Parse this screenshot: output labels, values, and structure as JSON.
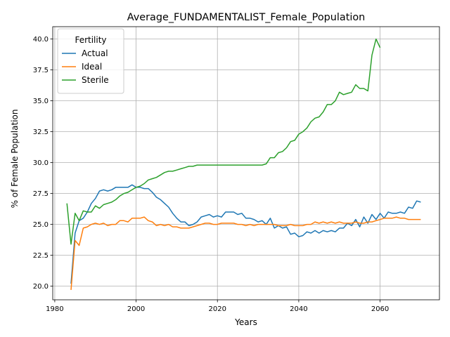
{
  "chart_data": {
    "type": "line",
    "title": "Average_FUNDAMENTALIST_Female_Population",
    "xlabel": "Years",
    "ylabel": "% of Female Population",
    "xlim": [
      1979.5,
      2074.6
    ],
    "ylim": [
      18.9,
      41.0
    ],
    "xticks": [
      1980,
      2000,
      2020,
      2040,
      2060
    ],
    "yticks": [
      20.0,
      22.5,
      25.0,
      27.5,
      30.0,
      32.5,
      35.0,
      37.5,
      40.0
    ],
    "xtick_labels": [
      "1980",
      "2000",
      "2020",
      "2040",
      "2060"
    ],
    "ytick_labels": [
      "20.0",
      "22.5",
      "25.0",
      "27.5",
      "30.0",
      "32.5",
      "35.0",
      "37.5",
      "40.0"
    ],
    "grid": true,
    "legend": {
      "title": "Fertility",
      "position": "top-left"
    },
    "series": [
      {
        "name": "Actual",
        "color": "#1f77b4",
        "x": [
          1984,
          1985,
          1986,
          1987,
          1988,
          1989,
          1990,
          1991,
          1992,
          1993,
          1994,
          1995,
          1996,
          1997,
          1998,
          1999,
          2000,
          2001,
          2002,
          2003,
          2004,
          2005,
          2006,
          2007,
          2008,
          2009,
          2010,
          2011,
          2012,
          2013,
          2014,
          2015,
          2016,
          2017,
          2018,
          2019,
          2020,
          2021,
          2022,
          2023,
          2024,
          2025,
          2026,
          2027,
          2028,
          2029,
          2030,
          2031,
          2032,
          2033,
          2034,
          2035,
          2036,
          2037,
          2038,
          2039,
          2040,
          2041,
          2042,
          2043,
          2044,
          2045,
          2046,
          2047,
          2048,
          2049,
          2050,
          2051,
          2052,
          2053,
          2054,
          2055,
          2056,
          2057,
          2058,
          2059,
          2060,
          2061,
          2062,
          2063,
          2064,
          2065,
          2066,
          2067,
          2068,
          2069,
          2070
        ],
        "values": [
          20.2,
          24.3,
          25.3,
          25.5,
          26.0,
          26.7,
          27.1,
          27.7,
          27.8,
          27.7,
          27.8,
          28.0,
          28.0,
          28.0,
          28.0,
          28.2,
          28.0,
          28.0,
          27.9,
          27.9,
          27.6,
          27.2,
          27.0,
          26.7,
          26.4,
          25.9,
          25.5,
          25.2,
          25.2,
          24.9,
          25.0,
          25.2,
          25.6,
          25.7,
          25.8,
          25.6,
          25.7,
          25.6,
          26.0,
          26.0,
          26.0,
          25.8,
          25.9,
          25.5,
          25.5,
          25.4,
          25.2,
          25.3,
          25.0,
          25.5,
          24.7,
          24.9,
          24.7,
          24.8,
          24.2,
          24.3,
          24.0,
          24.1,
          24.4,
          24.3,
          24.5,
          24.3,
          24.5,
          24.4,
          24.5,
          24.4,
          24.7,
          24.7,
          25.1,
          24.9,
          25.4,
          24.8,
          25.6,
          25.1,
          25.8,
          25.4,
          25.9,
          25.5,
          26.0,
          25.9,
          25.9,
          26.0,
          25.9,
          26.4,
          26.3,
          26.9,
          26.8
        ]
      },
      {
        "name": "Ideal",
        "color": "#ff7f0e",
        "x": [
          1984,
          1985,
          1986,
          1987,
          1988,
          1989,
          1990,
          1991,
          1992,
          1993,
          1994,
          1995,
          1996,
          1997,
          1998,
          1999,
          2000,
          2001,
          2002,
          2003,
          2004,
          2005,
          2006,
          2007,
          2008,
          2009,
          2010,
          2011,
          2012,
          2013,
          2014,
          2015,
          2016,
          2017,
          2018,
          2019,
          2020,
          2021,
          2022,
          2023,
          2024,
          2025,
          2026,
          2027,
          2028,
          2029,
          2030,
          2031,
          2032,
          2033,
          2034,
          2035,
          2036,
          2037,
          2038,
          2039,
          2040,
          2041,
          2042,
          2043,
          2044,
          2045,
          2046,
          2047,
          2048,
          2049,
          2050,
          2051,
          2052,
          2053,
          2054,
          2055,
          2056,
          2057,
          2058,
          2059,
          2060,
          2061,
          2062,
          2063,
          2064,
          2065,
          2066,
          2067,
          2068,
          2069,
          2070
        ],
        "values": [
          19.7,
          23.7,
          23.3,
          24.7,
          24.8,
          25.0,
          25.1,
          25.0,
          25.1,
          24.9,
          25.0,
          25.0,
          25.3,
          25.3,
          25.2,
          25.5,
          25.5,
          25.5,
          25.6,
          25.3,
          25.2,
          24.9,
          25.0,
          24.9,
          25.0,
          24.8,
          24.8,
          24.7,
          24.7,
          24.7,
          24.8,
          24.9,
          25.0,
          25.1,
          25.1,
          25.0,
          25.0,
          25.1,
          25.1,
          25.1,
          25.1,
          25.0,
          25.0,
          24.9,
          25.0,
          24.9,
          25.0,
          25.0,
          25.0,
          25.0,
          25.0,
          24.9,
          24.9,
          24.9,
          25.0,
          24.9,
          24.9,
          24.9,
          25.0,
          25.0,
          25.2,
          25.1,
          25.2,
          25.1,
          25.2,
          25.1,
          25.2,
          25.1,
          25.1,
          25.1,
          25.2,
          25.1,
          25.1,
          25.2,
          25.2,
          25.3,
          25.4,
          25.5,
          25.5,
          25.5,
          25.6,
          25.5,
          25.5,
          25.4,
          25.4,
          25.4,
          25.4
        ]
      },
      {
        "name": "Sterile",
        "color": "#2ca02c",
        "x": [
          1983,
          1984,
          1985,
          1986,
          1987,
          1988,
          1989,
          1990,
          1991,
          1992,
          1993,
          1994,
          1995,
          1996,
          1997,
          1998,
          1999,
          2000,
          2001,
          2002,
          2003,
          2004,
          2005,
          2006,
          2007,
          2008,
          2009,
          2010,
          2011,
          2012,
          2013,
          2014,
          2015,
          2016,
          2017,
          2018,
          2019,
          2020,
          2021,
          2022,
          2023,
          2024,
          2025,
          2026,
          2027,
          2028,
          2029,
          2030,
          2031,
          2032,
          2033,
          2034,
          2035,
          2036,
          2037,
          2038,
          2039,
          2040,
          2041,
          2042,
          2043,
          2044,
          2045,
          2046,
          2047,
          2048,
          2049,
          2050,
          2051,
          2052,
          2053,
          2054,
          2055,
          2056,
          2057,
          2058,
          2059,
          2060
        ],
        "values": [
          26.7,
          23.4,
          25.9,
          25.3,
          26.1,
          26.0,
          26.0,
          26.5,
          26.3,
          26.6,
          26.7,
          26.8,
          27.0,
          27.3,
          27.5,
          27.6,
          27.8,
          28.0,
          28.1,
          28.3,
          28.6,
          28.7,
          28.8,
          29.0,
          29.2,
          29.3,
          29.3,
          29.4,
          29.5,
          29.6,
          29.7,
          29.7,
          29.8,
          29.8,
          29.8,
          29.8,
          29.8,
          29.8,
          29.8,
          29.8,
          29.8,
          29.8,
          29.8,
          29.8,
          29.8,
          29.8,
          29.8,
          29.8,
          29.8,
          29.9,
          30.4,
          30.4,
          30.8,
          30.9,
          31.2,
          31.7,
          31.8,
          32.3,
          32.5,
          32.8,
          33.3,
          33.6,
          33.7,
          34.1,
          34.7,
          34.7,
          35.0,
          35.7,
          35.5,
          35.6,
          35.7,
          36.3,
          36.0,
          36.0,
          35.8,
          38.7,
          40.0,
          39.3
        ]
      }
    ]
  }
}
